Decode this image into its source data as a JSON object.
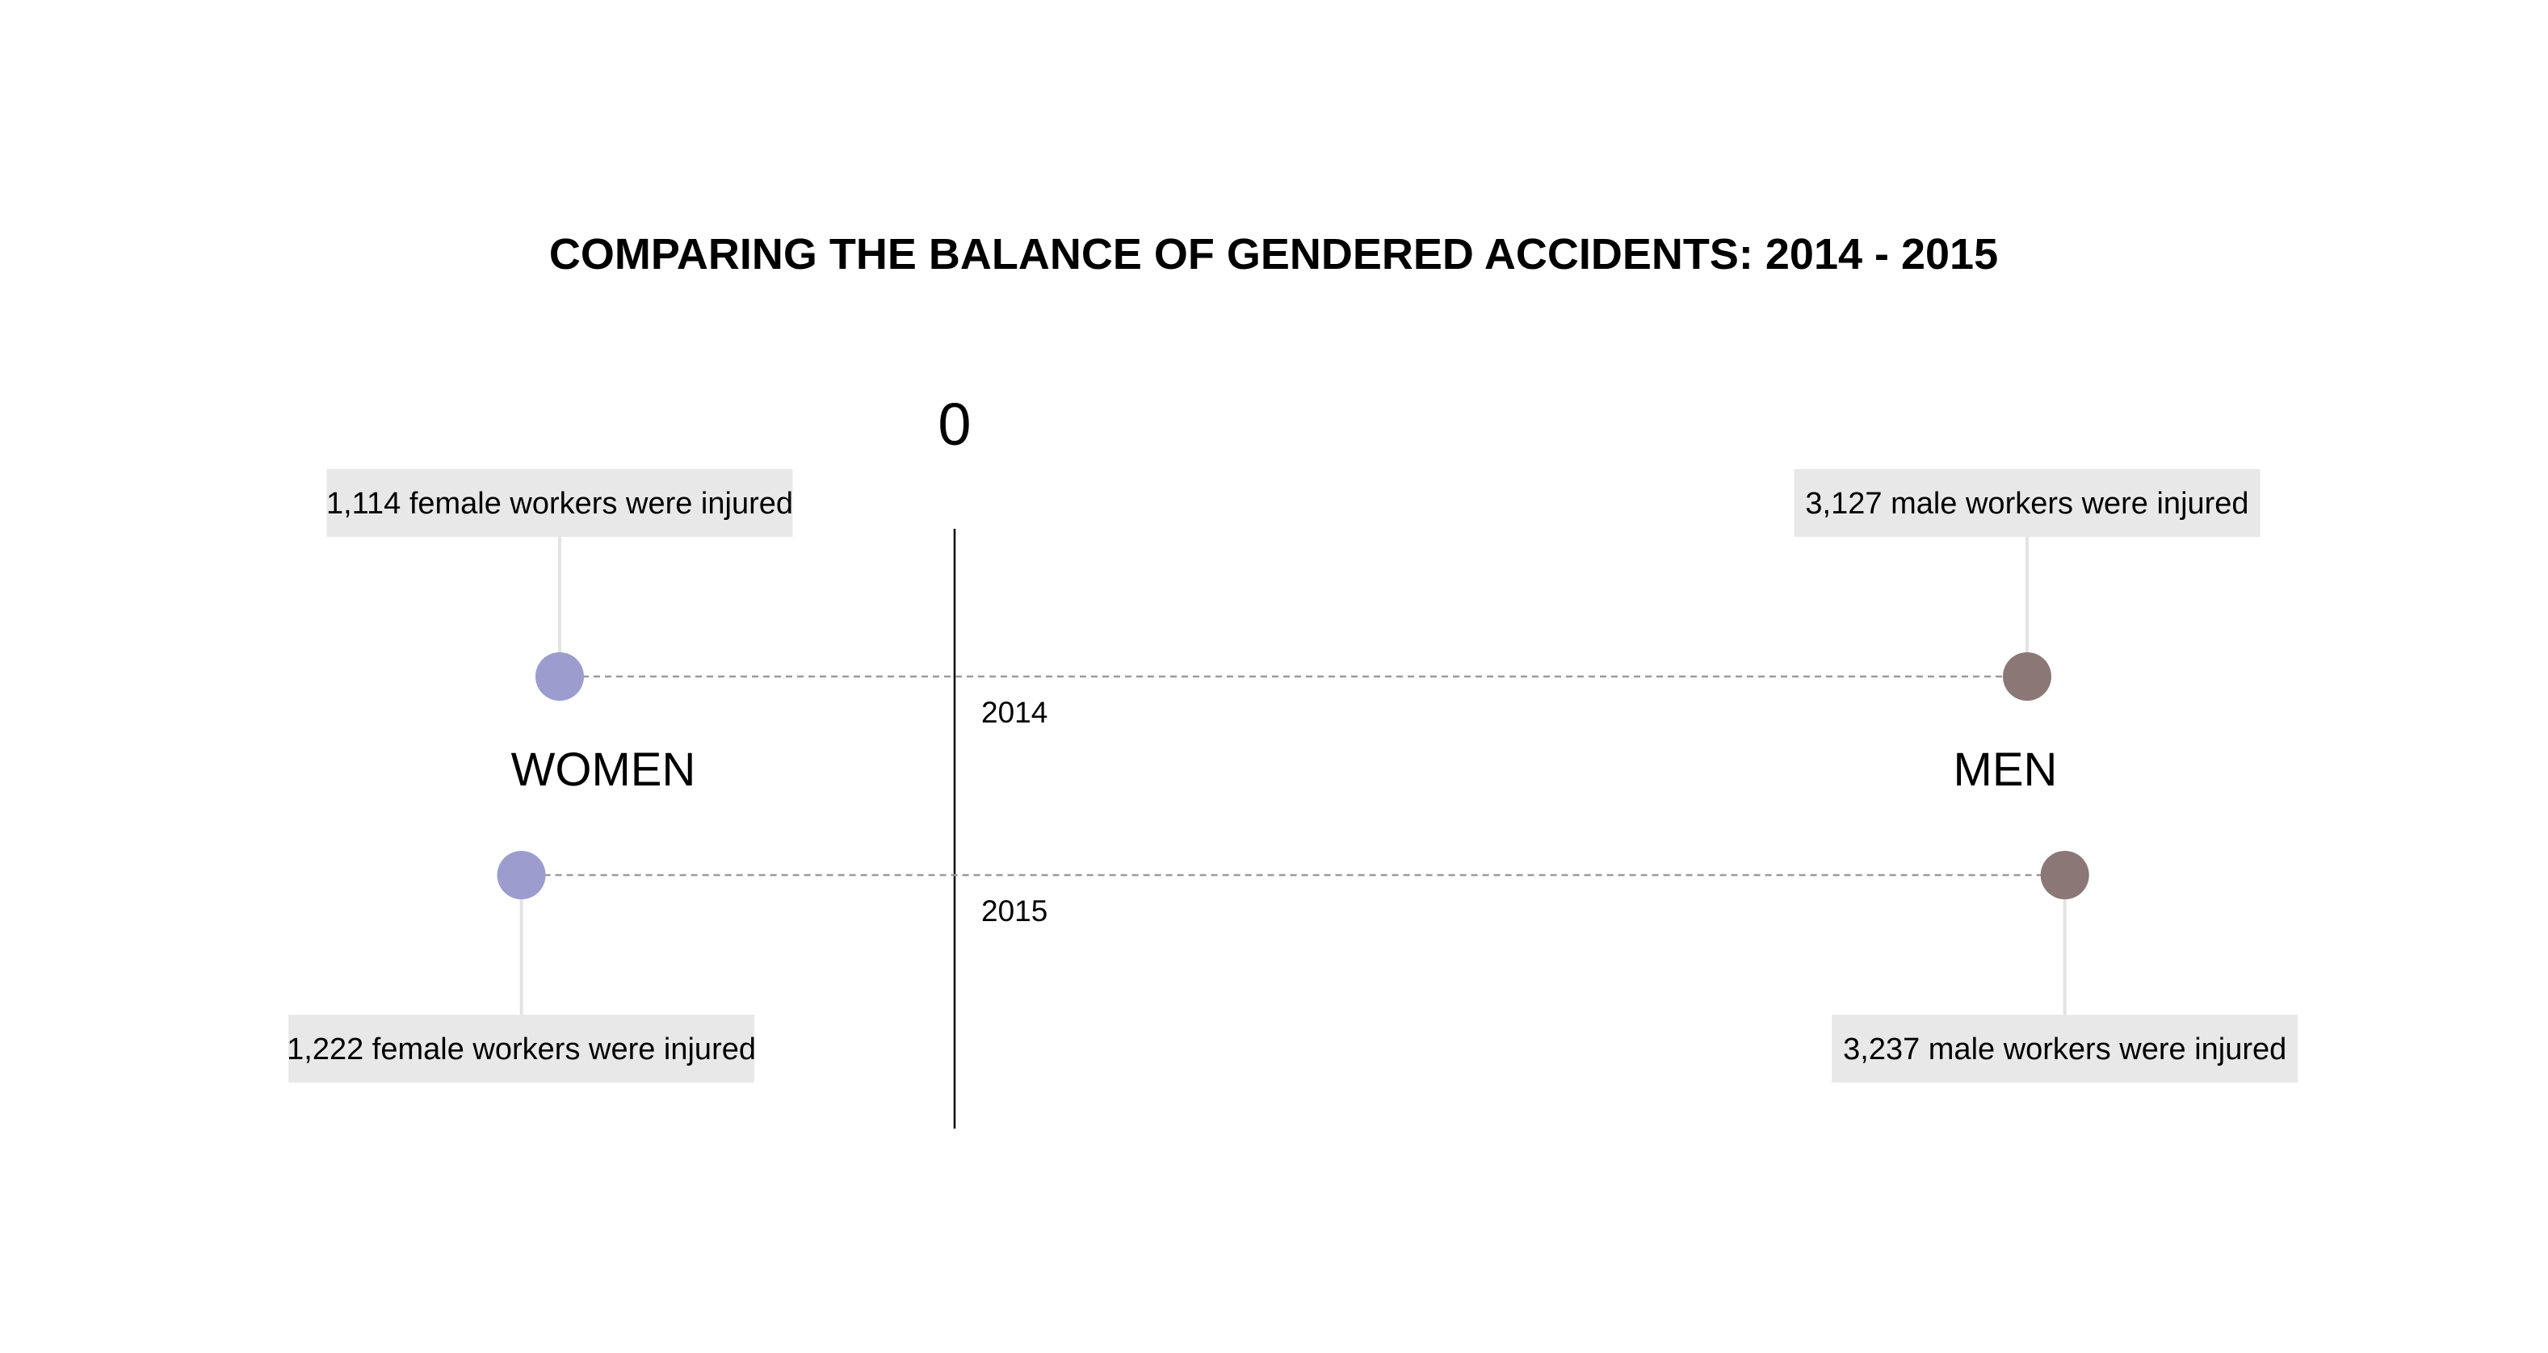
{
  "chart_data": {
    "type": "dot-comparison",
    "title": "COMPARING THE BALANCE OF GENDERED ACCIDENTS: 2014 - 2015",
    "zero_label": "0",
    "groups": {
      "women": "WOMEN",
      "men": "MEN"
    },
    "categories": [
      "2014",
      "2015"
    ],
    "series": [
      {
        "key": "women",
        "color": "#9c9cce",
        "values": [
          1114,
          1222
        ],
        "annotations": [
          "1,114 female workers were injured",
          "1,222 female workers were injured"
        ]
      },
      {
        "key": "men",
        "color": "#8c7777",
        "values": [
          3127,
          3237
        ],
        "annotations": [
          "3,127 male workers were injured",
          "3,237 male workers were injured"
        ]
      }
    ],
    "colors": {
      "axis": "#000000",
      "connector": "#9a9a9a",
      "leader": "#e3e3e3",
      "box": "#e8e8e8"
    }
  }
}
